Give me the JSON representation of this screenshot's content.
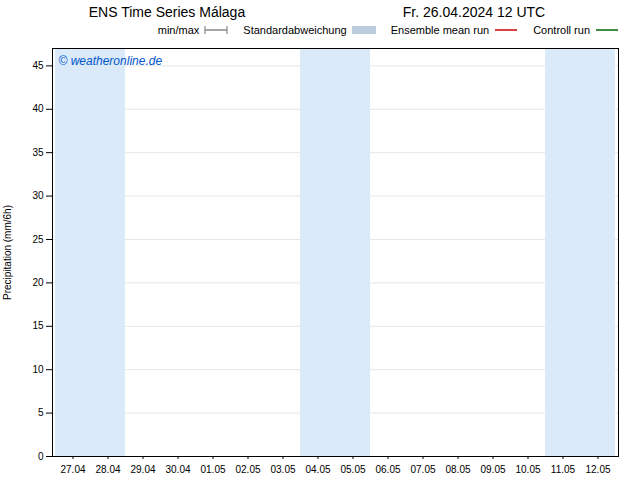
{
  "chart_data": {
    "type": "line",
    "title": "ENS Time Series Málaga",
    "subtitle": "Fr. 26.04.2024 12 UTC",
    "y_label": "Precipitation (mm/6h)",
    "categories": [
      "27.04",
      "28.04",
      "29.04",
      "30.04",
      "01.05",
      "02.05",
      "03.05",
      "04.05",
      "05.05",
      "06.05",
      "07.05",
      "08.05",
      "09.05",
      "10.05",
      "11.05",
      "12.05"
    ],
    "series": [
      {
        "name": "min/max",
        "type": "errorbar",
        "color": "#888888",
        "values": [
          null,
          null,
          null,
          null,
          null,
          null,
          null,
          null,
          null,
          null,
          null,
          null,
          null,
          null,
          null,
          null
        ]
      },
      {
        "name": "Standardabweichung",
        "type": "area",
        "color": "#bbccdd",
        "values": [
          null,
          null,
          null,
          null,
          null,
          null,
          null,
          null,
          null,
          null,
          null,
          null,
          null,
          null,
          null,
          null
        ]
      },
      {
        "name": "Ensemble mean run",
        "type": "line",
        "color": "#cc0000",
        "values": [
          null,
          null,
          null,
          null,
          null,
          null,
          null,
          null,
          null,
          null,
          null,
          null,
          null,
          null,
          null,
          null
        ]
      },
      {
        "name": "Controll run",
        "type": "line",
        "color": "#006600",
        "values": [
          null,
          null,
          null,
          null,
          null,
          null,
          null,
          null,
          null,
          null,
          null,
          null,
          null,
          null,
          null,
          null
        ]
      }
    ],
    "ylim": [
      0,
      47
    ],
    "yticks": [
      0,
      5,
      10,
      15,
      20,
      25,
      30,
      35,
      40,
      45
    ],
    "grid": true,
    "legend": "upper right",
    "bands": {
      "categories": [
        "27.04",
        "28.04",
        "04.05",
        "05.05",
        "11.05",
        "12.05"
      ],
      "color": "#daeaf8"
    },
    "annotations": [
      {
        "text": "© weatheronline.de",
        "color": "#0055cc"
      }
    ]
  }
}
